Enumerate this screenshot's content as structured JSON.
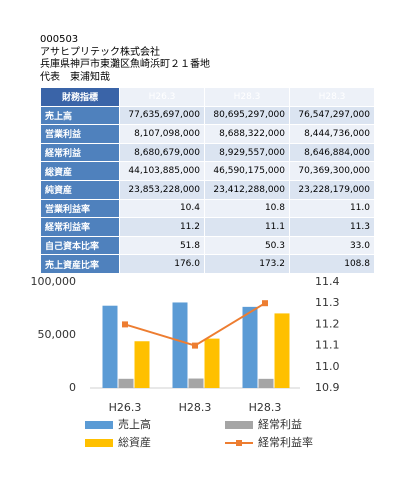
{
  "header": {
    "code": "000503",
    "company": "アサヒプリテック株式会社",
    "address": "兵庫県神戸市東灘区魚崎浜町２１番地",
    "representative": "代表　東浦知哉"
  },
  "table": {
    "header": [
      "財務指標",
      "H26.3",
      "H28.3",
      "H28.3"
    ],
    "rows": [
      [
        "売上高",
        "77,635,697,000",
        "80,695,297,000",
        "76,547,297,000"
      ],
      [
        "営業利益",
        "8,107,098,000",
        "8,688,322,000",
        "8,444,736,000"
      ],
      [
        "経常利益",
        "8,680,679,000",
        "8,929,557,000",
        "8,646,884,000"
      ],
      [
        "総資産",
        "44,103,885,000",
        "46,590,175,000",
        "70,369,300,000"
      ],
      [
        "純資産",
        "23,853,228,000",
        "23,412,288,000",
        "23,228,179,000"
      ],
      [
        "営業利益率",
        "10.4",
        "10.8",
        "11.0"
      ],
      [
        "経常利益率",
        "11.2",
        "11.1",
        "11.3"
      ],
      [
        "自己資本比率",
        "51.8",
        "50.3",
        "33.0"
      ],
      [
        "売上資産比率",
        "176.0",
        "173.2",
        "108.8"
      ]
    ]
  },
  "chart_data": {
    "type": "bar",
    "categories": [
      "H26.3",
      "H28.3",
      "H28.3"
    ],
    "series": [
      {
        "name": "売上高",
        "color": "#5b9bd5",
        "values": [
          77636,
          80695,
          76547
        ]
      },
      {
        "name": "経常利益",
        "color": "#a5a5a5",
        "values": [
          8681,
          8930,
          8647
        ]
      },
      {
        "name": "総資産",
        "color": "#ffc000",
        "values": [
          44104,
          46590,
          70369
        ]
      },
      {
        "name": "経常利益率",
        "color": "#ed7d31",
        "values": [
          11.2,
          11.1,
          11.3
        ],
        "axis": "y2",
        "type": "line"
      }
    ],
    "ylim": [
      0,
      100000
    ],
    "yticks": [
      0,
      {
        "value": 50000,
        "label": "50,000"
      },
      {
        "value": 100000,
        "label": "100,000"
      }
    ],
    "y2lim": [
      10.9,
      11.4
    ],
    "y2ticks": [
      10.9,
      {
        "value": 11.0,
        "label": "11.0"
      },
      11.1,
      11.2,
      11.3,
      11.4
    ],
    "legend": "bottom"
  }
}
